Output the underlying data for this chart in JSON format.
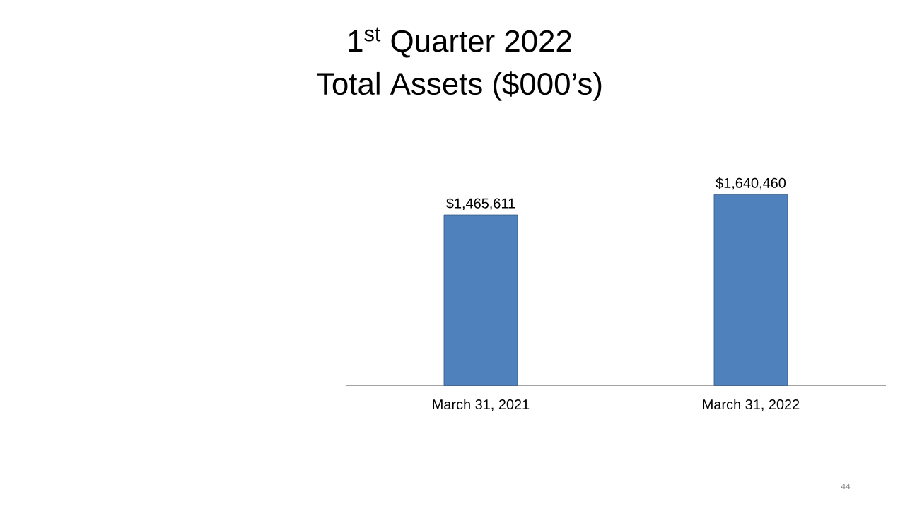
{
  "chart_data": {
    "type": "bar",
    "title": "1$^{st}$ Quarter 2022",
    "subtitle": "Total Assets ($000’s)",
    "categories": [
      "March 31, 2021",
      "March 31, 2022"
    ],
    "values": [
      1465611,
      1640460
    ],
    "value_labels": [
      "$1,465,611",
      "$1,640,460"
    ],
    "color": "#4f81bd",
    "annotations": [
      "44"
    ]
  }
}
